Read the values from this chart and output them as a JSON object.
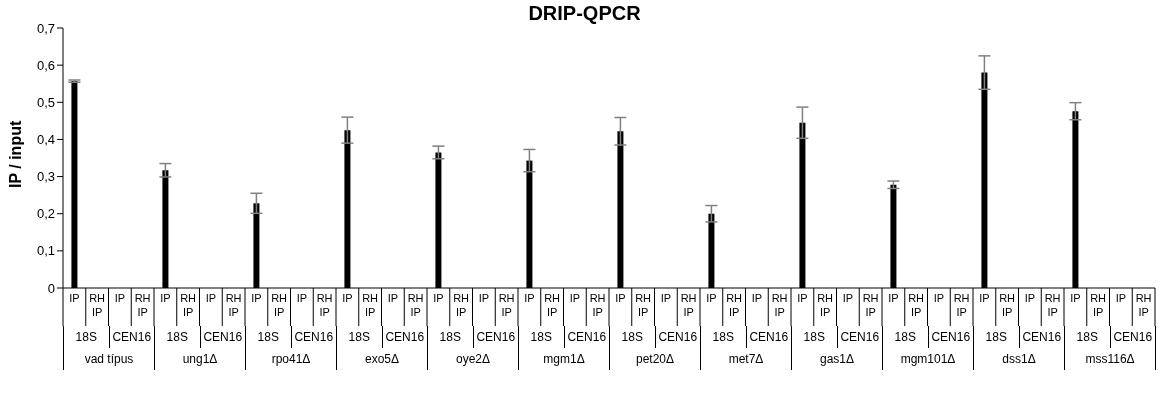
{
  "chart_data": {
    "type": "bar",
    "title": "DRIP-QPCR",
    "ylabel": "IP / input",
    "categories": [
      "IP",
      "RH IP",
      "IP",
      "RH IP",
      "IP",
      "RH IP",
      "IP",
      "RH IP",
      "IP",
      "RH IP",
      "IP",
      "RH IP",
      "IP",
      "RH IP",
      "IP",
      "RH IP",
      "IP",
      "RH IP",
      "IP",
      "RH IP",
      "IP",
      "RH IP",
      "IP",
      "RH IP",
      "IP",
      "RH IP",
      "IP",
      "RH IP",
      "IP",
      "RH IP",
      "IP",
      "RH IP",
      "IP",
      "RH IP",
      "IP",
      "RH IP",
      "IP",
      "RH IP",
      "IP",
      "RH IP",
      "IP",
      "RH IP",
      "IP",
      "RH IP",
      "IP",
      "RH IP",
      "IP",
      "RH IP"
    ],
    "values": [
      0.557,
      0,
      0,
      0,
      0.317,
      0,
      0,
      0,
      0.228,
      0,
      0,
      0,
      0.425,
      0,
      0,
      0,
      0.365,
      0,
      0,
      0,
      0.343,
      0,
      0,
      0,
      0.422,
      0,
      0,
      0,
      0.2,
      0,
      0,
      0,
      0.445,
      0,
      0,
      0,
      0.278,
      0,
      0,
      0,
      0.58,
      0,
      0,
      0,
      0.476,
      0,
      0,
      0
    ],
    "errors": [
      0.003,
      null,
      null,
      null,
      0.018,
      null,
      null,
      null,
      0.027,
      null,
      null,
      null,
      0.035,
      null,
      null,
      null,
      0.017,
      null,
      null,
      null,
      0.03,
      null,
      null,
      null,
      0.037,
      null,
      null,
      null,
      0.022,
      null,
      null,
      null,
      0.042,
      null,
      null,
      null,
      0.01,
      null,
      null,
      null,
      0.045,
      null,
      null,
      null,
      0.023,
      null,
      null,
      null
    ],
    "color": "#000000",
    "annotations": [
      "18S",
      "CEN16",
      "18S",
      "CEN16",
      "18S",
      "CEN16",
      "18S",
      "CEN16",
      "18S",
      "CEN16",
      "18S",
      "CEN16",
      "18S",
      "CEN16",
      "18S",
      "CEN16",
      "18S",
      "CEN16",
      "18S",
      "CEN16",
      "18S",
      "CEN16",
      "18S",
      "CEN16",
      "vad típus",
      "ung1Δ",
      "rpo41Δ",
      "exo5Δ",
      "oye2Δ",
      "mgm1Δ",
      "pet20Δ",
      "met7Δ",
      "gas1Δ",
      "mgm101Δ",
      "dss1Δ",
      "mss116Δ"
    ],
    "ylim": [
      0,
      0.7
    ],
    "yticks": [
      0,
      {
        "value": 0.1,
        "label": "0,1"
      },
      {
        "value": 0.2,
        "label": "0,2"
      },
      {
        "value": 0.3,
        "label": "0,3"
      },
      {
        "value": 0.4,
        "label": "0,4"
      },
      {
        "value": 0.5,
        "label": "0,5"
      },
      {
        "value": 0.6,
        "label": "0,6"
      },
      {
        "value": 0.7,
        "label": "0,7"
      }
    ],
    "grid": false,
    "legend": false
  }
}
